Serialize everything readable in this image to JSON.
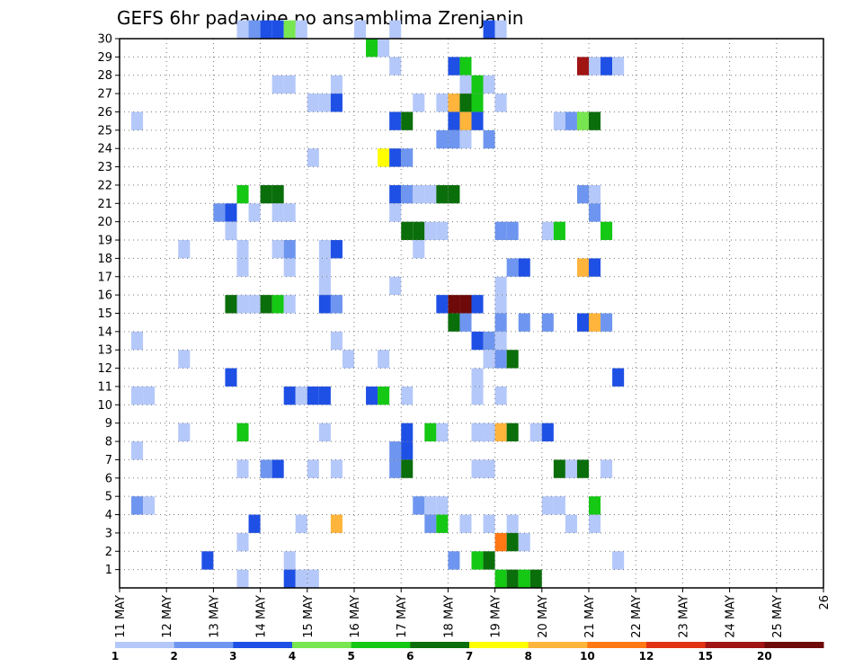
{
  "chart_data": {
    "type": "heatmap",
    "title": "GEFS 6hr padavine po ansamblima Zrenjanin",
    "xlabel": "",
    "ylabel": "",
    "x_ticks": [
      "11 MAY",
      "12 MAY",
      "13 MAY",
      "14 MAY",
      "15 MAY",
      "16 MAY",
      "17 MAY",
      "18 MAY",
      "19 MAY",
      "20 MAY",
      "21 MAY",
      "22 MAY",
      "23 MAY",
      "24 MAY",
      "25 MAY",
      "26"
    ],
    "y_ticks": [
      "1",
      "2",
      "3",
      "4",
      "5",
      "6",
      "7",
      "8",
      "9",
      "10",
      "11",
      "12",
      "13",
      "14",
      "15",
      "16",
      "17",
      "18",
      "19",
      "20",
      "21",
      "22",
      "23",
      "24",
      "25",
      "26",
      "27",
      "28",
      "29",
      "30"
    ],
    "xlim": [
      0,
      60
    ],
    "ylim": [
      0,
      30
    ],
    "grid": true,
    "colorbar": {
      "labels": [
        "1",
        "2",
        "3",
        "4",
        "5",
        "6",
        "7",
        "8",
        "10",
        "12",
        "15",
        "20"
      ],
      "colors": [
        "#b4c8fa",
        "#6e96f0",
        "#1e50e6",
        "#78e650",
        "#14c814",
        "#0a6e0a",
        "#ffff00",
        "#ffb43c",
        "#ff7814",
        "#e13214",
        "#a01414",
        "#6e0a0a"
      ]
    },
    "cells": [
      {
        "t": 10,
        "e": 30,
        "v": 1
      },
      {
        "t": 11,
        "e": 30,
        "v": 2
      },
      {
        "t": 12,
        "e": 30,
        "v": 3
      },
      {
        "t": 13,
        "e": 30,
        "v": 3
      },
      {
        "t": 14,
        "e": 30,
        "v": 4
      },
      {
        "t": 15,
        "e": 30,
        "v": 1
      },
      {
        "t": 20,
        "e": 30,
        "v": 1
      },
      {
        "t": 23,
        "e": 30,
        "v": 1
      },
      {
        "t": 31,
        "e": 30,
        "v": 3
      },
      {
        "t": 32,
        "e": 30,
        "v": 1
      },
      {
        "t": 21,
        "e": 29,
        "v": 5
      },
      {
        "t": 22,
        "e": 29,
        "v": 1
      },
      {
        "t": 23,
        "e": 28,
        "v": 1
      },
      {
        "t": 28,
        "e": 28,
        "v": 3
      },
      {
        "t": 29,
        "e": 28,
        "v": 5
      },
      {
        "t": 39,
        "e": 28,
        "v": 15
      },
      {
        "t": 40,
        "e": 28,
        "v": 1
      },
      {
        "t": 41,
        "e": 28,
        "v": 3
      },
      {
        "t": 42,
        "e": 28,
        "v": 1
      },
      {
        "t": 13,
        "e": 27,
        "v": 1
      },
      {
        "t": 14,
        "e": 27,
        "v": 1
      },
      {
        "t": 18,
        "e": 27,
        "v": 1
      },
      {
        "t": 29,
        "e": 27,
        "v": 1
      },
      {
        "t": 30,
        "e": 27,
        "v": 5
      },
      {
        "t": 31,
        "e": 27,
        "v": 1
      },
      {
        "t": 16,
        "e": 26,
        "v": 1
      },
      {
        "t": 17,
        "e": 26,
        "v": 1
      },
      {
        "t": 18,
        "e": 26,
        "v": 3
      },
      {
        "t": 25,
        "e": 26,
        "v": 1
      },
      {
        "t": 27,
        "e": 26,
        "v": 1
      },
      {
        "t": 28,
        "e": 26,
        "v": 8
      },
      {
        "t": 29,
        "e": 26,
        "v": 6
      },
      {
        "t": 30,
        "e": 26,
        "v": 5
      },
      {
        "t": 32,
        "e": 26,
        "v": 1
      },
      {
        "t": 1,
        "e": 25,
        "v": 1
      },
      {
        "t": 23,
        "e": 25,
        "v": 3
      },
      {
        "t": 24,
        "e": 25,
        "v": 6
      },
      {
        "t": 28,
        "e": 25,
        "v": 3
      },
      {
        "t": 29,
        "e": 25,
        "v": 8
      },
      {
        "t": 30,
        "e": 25,
        "v": 3
      },
      {
        "t": 37,
        "e": 25,
        "v": 1
      },
      {
        "t": 38,
        "e": 25,
        "v": 2
      },
      {
        "t": 39,
        "e": 25,
        "v": 4
      },
      {
        "t": 40,
        "e": 25,
        "v": 6
      },
      {
        "t": 27,
        "e": 24,
        "v": 2
      },
      {
        "t": 28,
        "e": 24,
        "v": 2
      },
      {
        "t": 29,
        "e": 24,
        "v": 1
      },
      {
        "t": 31,
        "e": 24,
        "v": 2
      },
      {
        "t": 16,
        "e": 23,
        "v": 1
      },
      {
        "t": 22,
        "e": 23,
        "v": 7
      },
      {
        "t": 23,
        "e": 23,
        "v": 3
      },
      {
        "t": 24,
        "e": 23,
        "v": 2
      },
      {
        "t": 10,
        "e": 21,
        "v": 5
      },
      {
        "t": 12,
        "e": 21,
        "v": 6
      },
      {
        "t": 13,
        "e": 21,
        "v": 6
      },
      {
        "t": 23,
        "e": 21,
        "v": 3
      },
      {
        "t": 24,
        "e": 21,
        "v": 2
      },
      {
        "t": 25,
        "e": 21,
        "v": 1
      },
      {
        "t": 26,
        "e": 21,
        "v": 1
      },
      {
        "t": 27,
        "e": 21,
        "v": 6
      },
      {
        "t": 28,
        "e": 21,
        "v": 6
      },
      {
        "t": 39,
        "e": 21,
        "v": 2
      },
      {
        "t": 40,
        "e": 21,
        "v": 1
      },
      {
        "t": 8,
        "e": 20,
        "v": 2
      },
      {
        "t": 9,
        "e": 20,
        "v": 3
      },
      {
        "t": 11,
        "e": 20,
        "v": 1
      },
      {
        "t": 13,
        "e": 20,
        "v": 1
      },
      {
        "t": 14,
        "e": 20,
        "v": 1
      },
      {
        "t": 23,
        "e": 20,
        "v": 1
      },
      {
        "t": 40,
        "e": 20,
        "v": 2
      },
      {
        "t": 9,
        "e": 19,
        "v": 1
      },
      {
        "t": 24,
        "e": 19,
        "v": 6
      },
      {
        "t": 25,
        "e": 19,
        "v": 6
      },
      {
        "t": 26,
        "e": 19,
        "v": 1
      },
      {
        "t": 27,
        "e": 19,
        "v": 1
      },
      {
        "t": 32,
        "e": 19,
        "v": 2
      },
      {
        "t": 33,
        "e": 19,
        "v": 2
      },
      {
        "t": 36,
        "e": 19,
        "v": 1
      },
      {
        "t": 37,
        "e": 19,
        "v": 5
      },
      {
        "t": 41,
        "e": 19,
        "v": 5
      },
      {
        "t": 5,
        "e": 18,
        "v": 1
      },
      {
        "t": 10,
        "e": 18,
        "v": 1
      },
      {
        "t": 13,
        "e": 18,
        "v": 1
      },
      {
        "t": 14,
        "e": 18,
        "v": 2
      },
      {
        "t": 17,
        "e": 18,
        "v": 1
      },
      {
        "t": 18,
        "e": 18,
        "v": 3
      },
      {
        "t": 25,
        "e": 18,
        "v": 1
      },
      {
        "t": 10,
        "e": 17,
        "v": 1
      },
      {
        "t": 14,
        "e": 17,
        "v": 1
      },
      {
        "t": 17,
        "e": 17,
        "v": 1
      },
      {
        "t": 33,
        "e": 17,
        "v": 2
      },
      {
        "t": 34,
        "e": 17,
        "v": 3
      },
      {
        "t": 39,
        "e": 17,
        "v": 8
      },
      {
        "t": 40,
        "e": 17,
        "v": 3
      },
      {
        "t": 17,
        "e": 16,
        "v": 1
      },
      {
        "t": 23,
        "e": 16,
        "v": 1
      },
      {
        "t": 32,
        "e": 16,
        "v": 1
      },
      {
        "t": 9,
        "e": 15,
        "v": 6
      },
      {
        "t": 10,
        "e": 15,
        "v": 1
      },
      {
        "t": 11,
        "e": 15,
        "v": 1
      },
      {
        "t": 12,
        "e": 15,
        "v": 6
      },
      {
        "t": 13,
        "e": 15,
        "v": 5
      },
      {
        "t": 14,
        "e": 15,
        "v": 1
      },
      {
        "t": 17,
        "e": 15,
        "v": 3
      },
      {
        "t": 18,
        "e": 15,
        "v": 2
      },
      {
        "t": 27,
        "e": 15,
        "v": 3
      },
      {
        "t": 28,
        "e": 15,
        "v": 20
      },
      {
        "t": 29,
        "e": 15,
        "v": 20
      },
      {
        "t": 30,
        "e": 15,
        "v": 3
      },
      {
        "t": 32,
        "e": 15,
        "v": 1
      },
      {
        "t": 28,
        "e": 14,
        "v": 6
      },
      {
        "t": 29,
        "e": 14,
        "v": 2
      },
      {
        "t": 32,
        "e": 14,
        "v": 2
      },
      {
        "t": 34,
        "e": 14,
        "v": 2
      },
      {
        "t": 36,
        "e": 14,
        "v": 2
      },
      {
        "t": 39,
        "e": 14,
        "v": 3
      },
      {
        "t": 40,
        "e": 14,
        "v": 8
      },
      {
        "t": 41,
        "e": 14,
        "v": 2
      },
      {
        "t": 1,
        "e": 13,
        "v": 1
      },
      {
        "t": 18,
        "e": 13,
        "v": 1
      },
      {
        "t": 30,
        "e": 13,
        "v": 3
      },
      {
        "t": 31,
        "e": 13,
        "v": 2
      },
      {
        "t": 32,
        "e": 13,
        "v": 1
      },
      {
        "t": 5,
        "e": 12,
        "v": 1
      },
      {
        "t": 19,
        "e": 12,
        "v": 1
      },
      {
        "t": 22,
        "e": 12,
        "v": 1
      },
      {
        "t": 31,
        "e": 12,
        "v": 1
      },
      {
        "t": 32,
        "e": 12,
        "v": 2
      },
      {
        "t": 33,
        "e": 12,
        "v": 6
      },
      {
        "t": 9,
        "e": 11,
        "v": 3
      },
      {
        "t": 30,
        "e": 11,
        "v": 1
      },
      {
        "t": 42,
        "e": 11,
        "v": 3
      },
      {
        "t": 1,
        "e": 10,
        "v": 1
      },
      {
        "t": 2,
        "e": 10,
        "v": 1
      },
      {
        "t": 14,
        "e": 10,
        "v": 3
      },
      {
        "t": 15,
        "e": 10,
        "v": 1
      },
      {
        "t": 16,
        "e": 10,
        "v": 3
      },
      {
        "t": 17,
        "e": 10,
        "v": 3
      },
      {
        "t": 21,
        "e": 10,
        "v": 3
      },
      {
        "t": 22,
        "e": 10,
        "v": 5
      },
      {
        "t": 24,
        "e": 10,
        "v": 1
      },
      {
        "t": 30,
        "e": 10,
        "v": 1
      },
      {
        "t": 32,
        "e": 10,
        "v": 1
      },
      {
        "t": 5,
        "e": 8,
        "v": 1
      },
      {
        "t": 10,
        "e": 8,
        "v": 5
      },
      {
        "t": 17,
        "e": 8,
        "v": 1
      },
      {
        "t": 24,
        "e": 8,
        "v": 3
      },
      {
        "t": 26,
        "e": 8,
        "v": 5
      },
      {
        "t": 27,
        "e": 8,
        "v": 1
      },
      {
        "t": 30,
        "e": 8,
        "v": 1
      },
      {
        "t": 31,
        "e": 8,
        "v": 1
      },
      {
        "t": 32,
        "e": 8,
        "v": 8
      },
      {
        "t": 33,
        "e": 8,
        "v": 6
      },
      {
        "t": 35,
        "e": 8,
        "v": 1
      },
      {
        "t": 36,
        "e": 8,
        "v": 3
      },
      {
        "t": 1,
        "e": 7,
        "v": 1
      },
      {
        "t": 23,
        "e": 7,
        "v": 2
      },
      {
        "t": 24,
        "e": 7,
        "v": 3
      },
      {
        "t": 10,
        "e": 6,
        "v": 1
      },
      {
        "t": 12,
        "e": 6,
        "v": 2
      },
      {
        "t": 13,
        "e": 6,
        "v": 3
      },
      {
        "t": 16,
        "e": 6,
        "v": 1
      },
      {
        "t": 18,
        "e": 6,
        "v": 1
      },
      {
        "t": 23,
        "e": 6,
        "v": 2
      },
      {
        "t": 24,
        "e": 6,
        "v": 6
      },
      {
        "t": 30,
        "e": 6,
        "v": 1
      },
      {
        "t": 31,
        "e": 6,
        "v": 1
      },
      {
        "t": 37,
        "e": 6,
        "v": 6
      },
      {
        "t": 38,
        "e": 6,
        "v": 1
      },
      {
        "t": 39,
        "e": 6,
        "v": 6
      },
      {
        "t": 41,
        "e": 6,
        "v": 1
      },
      {
        "t": 1,
        "e": 4,
        "v": 2
      },
      {
        "t": 2,
        "e": 4,
        "v": 1
      },
      {
        "t": 25,
        "e": 4,
        "v": 2
      },
      {
        "t": 26,
        "e": 4,
        "v": 1
      },
      {
        "t": 27,
        "e": 4,
        "v": 1
      },
      {
        "t": 36,
        "e": 4,
        "v": 1
      },
      {
        "t": 37,
        "e": 4,
        "v": 1
      },
      {
        "t": 40,
        "e": 4,
        "v": 5
      },
      {
        "t": 11,
        "e": 3,
        "v": 3
      },
      {
        "t": 15,
        "e": 3,
        "v": 1
      },
      {
        "t": 18,
        "e": 3,
        "v": 8
      },
      {
        "t": 26,
        "e": 3,
        "v": 2
      },
      {
        "t": 27,
        "e": 3,
        "v": 5
      },
      {
        "t": 29,
        "e": 3,
        "v": 1
      },
      {
        "t": 31,
        "e": 3,
        "v": 1
      },
      {
        "t": 33,
        "e": 3,
        "v": 1
      },
      {
        "t": 38,
        "e": 3,
        "v": 1
      },
      {
        "t": 40,
        "e": 3,
        "v": 1
      },
      {
        "t": 10,
        "e": 2,
        "v": 1
      },
      {
        "t": 32,
        "e": 2,
        "v": 10
      },
      {
        "t": 33,
        "e": 2,
        "v": 6
      },
      {
        "t": 34,
        "e": 2,
        "v": 1
      },
      {
        "t": 7,
        "e": 1,
        "v": 3
      },
      {
        "t": 14,
        "e": 1,
        "v": 1
      },
      {
        "t": 28,
        "e": 1,
        "v": 2
      },
      {
        "t": 30,
        "e": 1,
        "v": 5
      },
      {
        "t": 31,
        "e": 1,
        "v": 6
      },
      {
        "t": 42,
        "e": 1,
        "v": 1
      },
      {
        "t": 10,
        "e": 0,
        "v": 1
      },
      {
        "t": 14,
        "e": 0,
        "v": 3
      },
      {
        "t": 15,
        "e": 0,
        "v": 1
      },
      {
        "t": 16,
        "e": 0,
        "v": 1
      },
      {
        "t": 32,
        "e": 0,
        "v": 5
      },
      {
        "t": 33,
        "e": 0,
        "v": 6
      },
      {
        "t": 34,
        "e": 0,
        "v": 5
      },
      {
        "t": 35,
        "e": 0,
        "v": 6
      }
    ]
  }
}
